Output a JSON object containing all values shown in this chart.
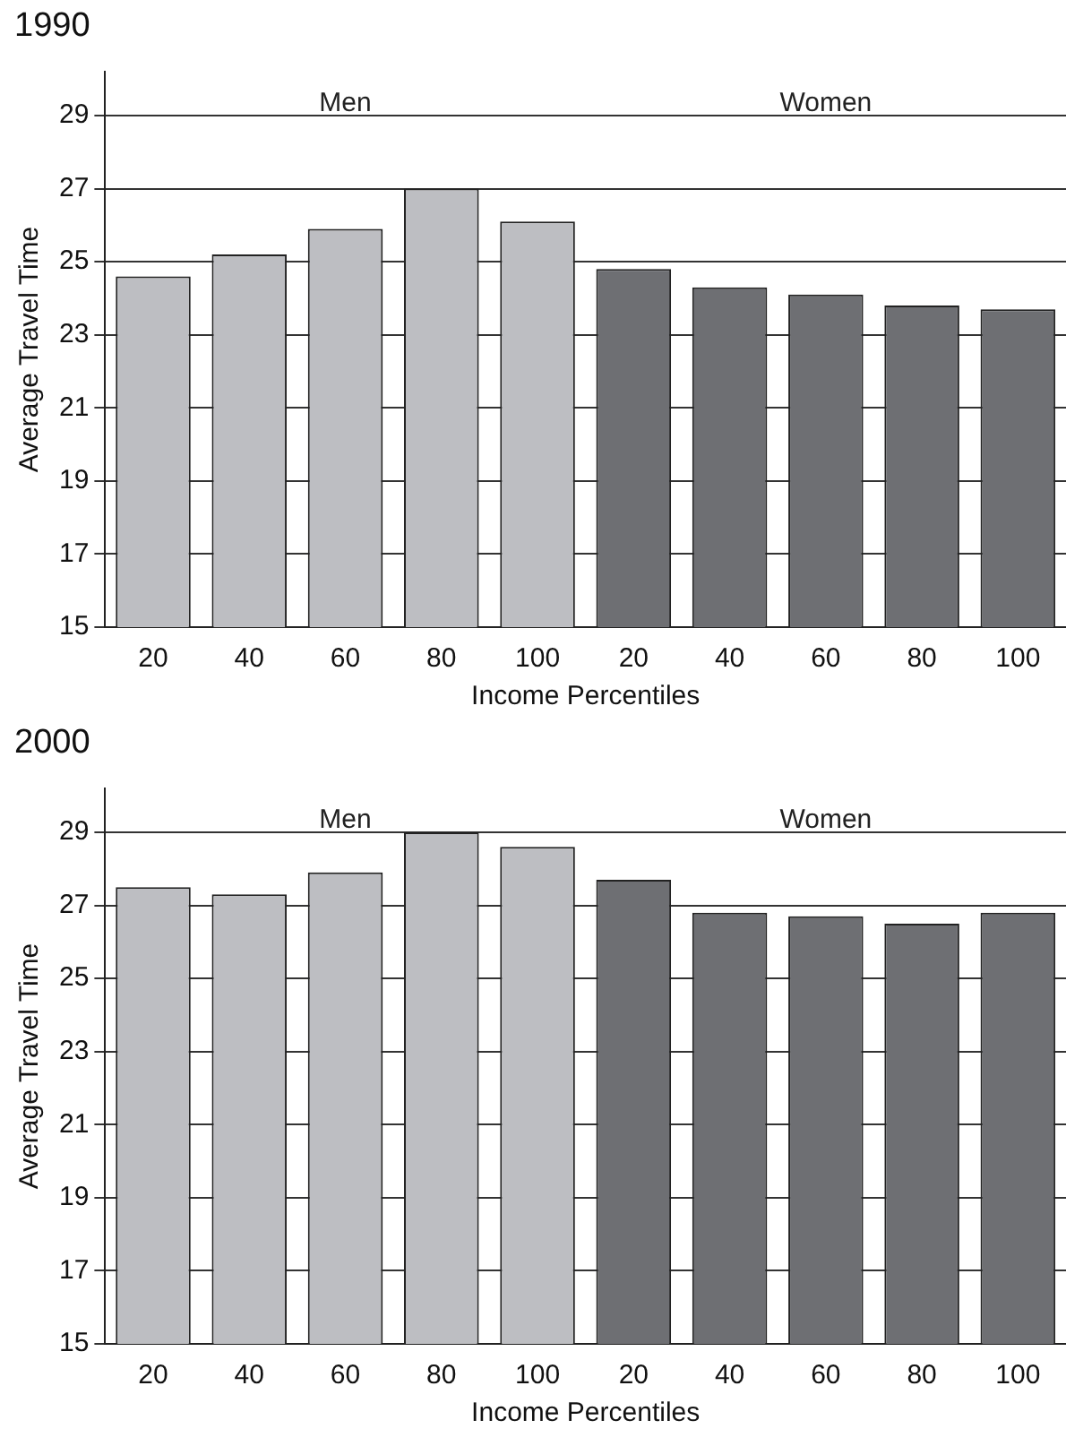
{
  "chart_data": [
    {
      "type": "bar",
      "title": "1990",
      "xlabel": "Income Percentiles",
      "ylabel": "Average Travel Time",
      "categories": [
        "20",
        "40",
        "60",
        "80",
        "100",
        "20",
        "40",
        "60",
        "80",
        "100"
      ],
      "values": [
        24.6,
        25.2,
        25.9,
        27.0,
        26.1,
        24.8,
        24.3,
        24.1,
        23.8,
        23.7
      ],
      "colors": [
        "#bdbec2",
        "#bdbec2",
        "#bdbec2",
        "#bdbec2",
        "#bdbec2",
        "#6e6f73",
        "#6e6f73",
        "#6e6f73",
        "#6e6f73",
        "#6e6f73"
      ],
      "ylim": [
        15,
        30.2
      ],
      "yticks": [
        15,
        17,
        19,
        21,
        23,
        25,
        27,
        29
      ],
      "grid": "y",
      "annotations": [
        "Men",
        "Women"
      ]
    },
    {
      "type": "bar",
      "title": "2000",
      "xlabel": "Income Percentiles",
      "ylabel": "Average Travel Time",
      "categories": [
        "20",
        "40",
        "60",
        "80",
        "100",
        "20",
        "40",
        "60",
        "80",
        "100"
      ],
      "values": [
        27.5,
        27.3,
        27.9,
        29.0,
        28.6,
        27.7,
        26.8,
        26.7,
        26.5,
        26.8
      ],
      "colors": [
        "#bdbec2",
        "#bdbec2",
        "#bdbec2",
        "#bdbec2",
        "#bdbec2",
        "#6e6f73",
        "#6e6f73",
        "#6e6f73",
        "#6e6f73",
        "#6e6f73"
      ],
      "ylim": [
        15,
        30.2
      ],
      "yticks": [
        15,
        17,
        19,
        21,
        23,
        25,
        27,
        29
      ],
      "grid": "y",
      "annotations": [
        "Men",
        "Women"
      ]
    }
  ]
}
